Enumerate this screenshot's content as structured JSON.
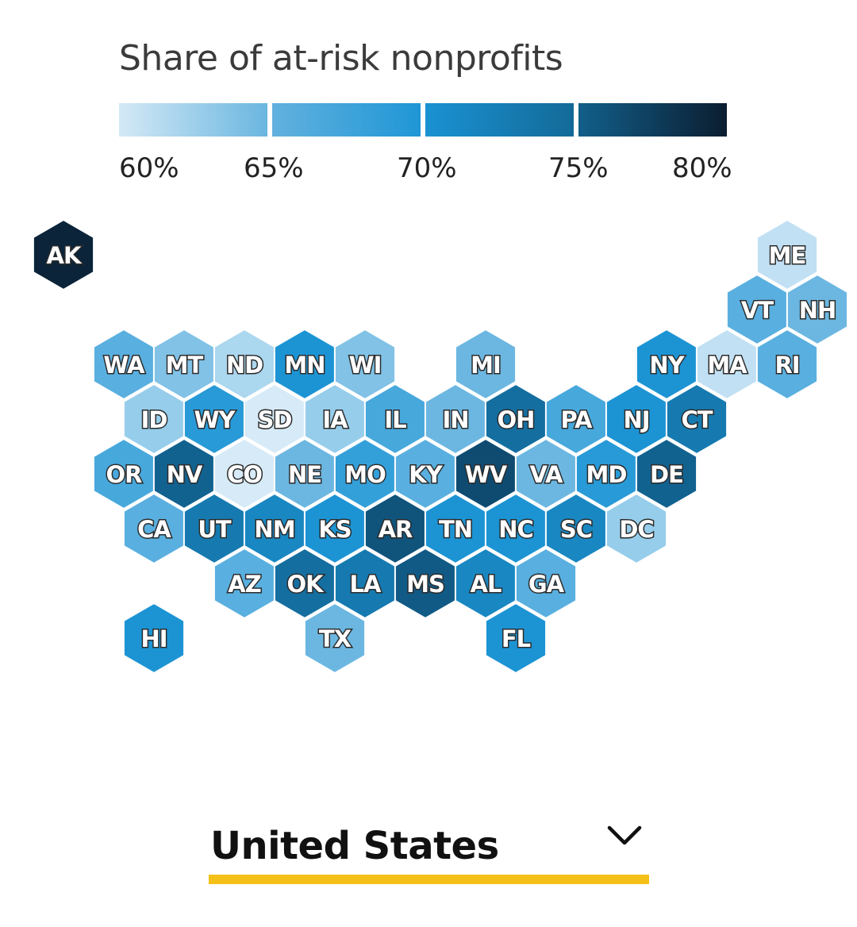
{
  "legend": {
    "title": "Share of at-risk nonprofits",
    "ticks": [
      "60%",
      "65%",
      "70%",
      "75%",
      "80%"
    ],
    "tick_values": [
      60,
      65,
      70,
      75,
      80
    ],
    "segments": [
      {
        "from": 60,
        "to": 65,
        "start_color": "#d4e9f6",
        "end_color": "#6ab6e0"
      },
      {
        "from": 65,
        "to": 70,
        "start_color": "#62b1de",
        "end_color": "#1f96d6"
      },
      {
        "from": 70,
        "to": 75,
        "start_color": "#1a92d3",
        "end_color": "#136a98"
      },
      {
        "from": 75,
        "to": 80,
        "start_color": "#125f8a",
        "end_color": "#0b1d30"
      }
    ]
  },
  "map": {
    "states": [
      {
        "abbr": "AK",
        "row": 0,
        "col": 0,
        "value": 80
      },
      {
        "abbr": "ME",
        "row": 0,
        "col": 12,
        "value": 61
      },
      {
        "abbr": "VT",
        "row": 1,
        "col": 11,
        "value": 66
      },
      {
        "abbr": "NH",
        "row": 1,
        "col": 12,
        "value": 65
      },
      {
        "abbr": "WA",
        "row": 2,
        "col": 1,
        "value": 66
      },
      {
        "abbr": "MT",
        "row": 2,
        "col": 2,
        "value": 64
      },
      {
        "abbr": "ND",
        "row": 2,
        "col": 3,
        "value": 62
      },
      {
        "abbr": "MN",
        "row": 2,
        "col": 4,
        "value": 70
      },
      {
        "abbr": "WI",
        "row": 2,
        "col": 5,
        "value": 64
      },
      {
        "abbr": "MI",
        "row": 2,
        "col": 7,
        "value": 65
      },
      {
        "abbr": "NY",
        "row": 2,
        "col": 10,
        "value": 70
      },
      {
        "abbr": "MA",
        "row": 2,
        "col": 11,
        "value": 61
      },
      {
        "abbr": "RI",
        "row": 2,
        "col": 12,
        "value": 66
      },
      {
        "abbr": "ID",
        "row": 3,
        "col": 1,
        "value": 63
      },
      {
        "abbr": "WY",
        "row": 3,
        "col": 2,
        "value": 69
      },
      {
        "abbr": "SD",
        "row": 3,
        "col": 3,
        "value": 60
      },
      {
        "abbr": "IA",
        "row": 3,
        "col": 4,
        "value": 63
      },
      {
        "abbr": "IL",
        "row": 3,
        "col": 5,
        "value": 67
      },
      {
        "abbr": "IN",
        "row": 3,
        "col": 6,
        "value": 65
      },
      {
        "abbr": "OH",
        "row": 3,
        "col": 7,
        "value": 73
      },
      {
        "abbr": "PA",
        "row": 3,
        "col": 8,
        "value": 67
      },
      {
        "abbr": "NJ",
        "row": 3,
        "col": 9,
        "value": 70
      },
      {
        "abbr": "CT",
        "row": 3,
        "col": 10,
        "value": 72
      },
      {
        "abbr": "OR",
        "row": 4,
        "col": 1,
        "value": 67
      },
      {
        "abbr": "NV",
        "row": 4,
        "col": 2,
        "value": 74
      },
      {
        "abbr": "CO",
        "row": 4,
        "col": 3,
        "value": 60
      },
      {
        "abbr": "NE",
        "row": 4,
        "col": 4,
        "value": 65
      },
      {
        "abbr": "MO",
        "row": 4,
        "col": 5,
        "value": 68
      },
      {
        "abbr": "KY",
        "row": 4,
        "col": 6,
        "value": 66
      },
      {
        "abbr": "WV",
        "row": 4,
        "col": 7,
        "value": 77
      },
      {
        "abbr": "VA",
        "row": 4,
        "col": 8,
        "value": 65
      },
      {
        "abbr": "MD",
        "row": 4,
        "col": 9,
        "value": 69
      },
      {
        "abbr": "DE",
        "row": 4,
        "col": 10,
        "value": 74
      },
      {
        "abbr": "CA",
        "row": 5,
        "col": 1,
        "value": 66
      },
      {
        "abbr": "UT",
        "row": 5,
        "col": 2,
        "value": 72
      },
      {
        "abbr": "NM",
        "row": 5,
        "col": 3,
        "value": 71
      },
      {
        "abbr": "KS",
        "row": 5,
        "col": 4,
        "value": 70
      },
      {
        "abbr": "AR",
        "row": 5,
        "col": 5,
        "value": 76
      },
      {
        "abbr": "TN",
        "row": 5,
        "col": 6,
        "value": 70
      },
      {
        "abbr": "NC",
        "row": 5,
        "col": 7,
        "value": 70
      },
      {
        "abbr": "SC",
        "row": 5,
        "col": 8,
        "value": 71
      },
      {
        "abbr": "DC",
        "row": 5,
        "col": 9,
        "value": 63
      },
      {
        "abbr": "AZ",
        "row": 6,
        "col": 3,
        "value": 66
      },
      {
        "abbr": "OK",
        "row": 6,
        "col": 4,
        "value": 73
      },
      {
        "abbr": "LA",
        "row": 6,
        "col": 5,
        "value": 72
      },
      {
        "abbr": "MS",
        "row": 6,
        "col": 6,
        "value": 75
      },
      {
        "abbr": "AL",
        "row": 6,
        "col": 7,
        "value": 71
      },
      {
        "abbr": "GA",
        "row": 6,
        "col": 8,
        "value": 66
      },
      {
        "abbr": "HI",
        "row": 7,
        "col": 1,
        "value": 70
      },
      {
        "abbr": "TX",
        "row": 7,
        "col": 4,
        "value": 65
      },
      {
        "abbr": "FL",
        "row": 7,
        "col": 7,
        "value": 70
      }
    ]
  },
  "selector": {
    "label": "United States",
    "icon": "chevron-down-icon",
    "underline_color": "#f5c018"
  }
}
